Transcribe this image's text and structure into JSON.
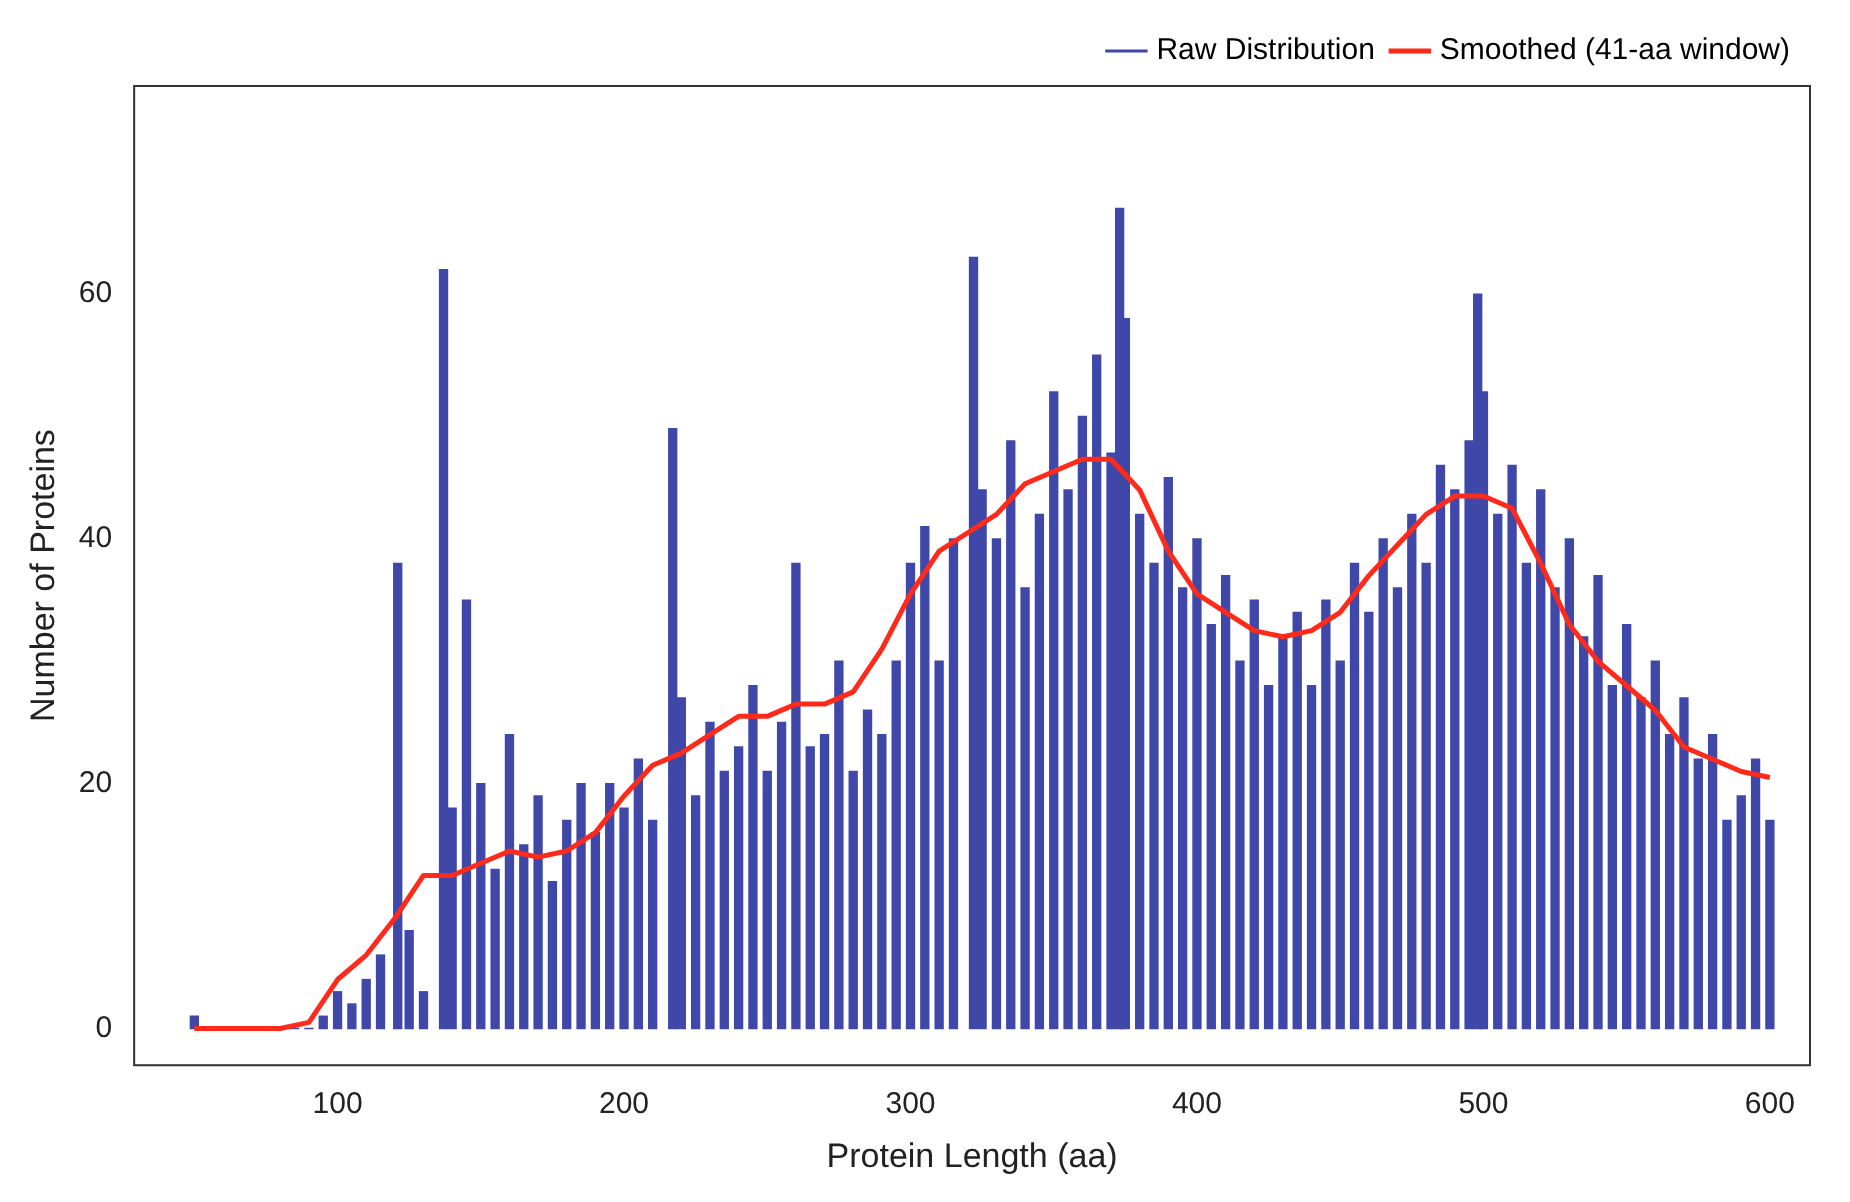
{
  "chart_data": {
    "type": "bar",
    "xlabel": "Protein Length (aa)",
    "ylabel": "Number of Proteins",
    "xlim": [
      29,
      614
    ],
    "xticks": [
      100,
      200,
      300,
      400,
      500,
      600
    ],
    "ylim": [
      -3,
      77
    ],
    "yticks": [
      0,
      20,
      40,
      60
    ],
    "grid": false,
    "legend": "top right",
    "series": [
      {
        "name": "Raw Distribution",
        "color": "#3f48a8",
        "x": [
          50,
          55,
          60,
          65,
          70,
          75,
          80,
          85,
          90,
          95,
          100,
          105,
          110,
          115,
          121,
          125,
          130,
          137,
          140,
          145,
          150,
          155,
          160,
          165,
          170,
          175,
          180,
          185,
          190,
          195,
          200,
          205,
          210,
          217,
          220,
          225,
          230,
          235,
          240,
          245,
          250,
          255,
          260,
          265,
          270,
          275,
          280,
          285,
          290,
          295,
          300,
          305,
          310,
          315,
          322,
          325,
          330,
          335,
          340,
          345,
          350,
          355,
          360,
          365,
          370,
          373,
          375,
          380,
          385,
          390,
          395,
          400,
          405,
          410,
          415,
          420,
          425,
          430,
          435,
          440,
          445,
          450,
          455,
          460,
          465,
          470,
          475,
          480,
          485,
          490,
          495,
          498,
          500,
          505,
          510,
          515,
          520,
          525,
          530,
          535,
          540,
          545,
          550,
          555,
          560,
          565,
          570,
          575,
          580,
          585,
          590,
          595,
          600
        ],
        "values": [
          1,
          0,
          0,
          0,
          0,
          0,
          0,
          0,
          0,
          1,
          3,
          2,
          4,
          6,
          38,
          8,
          3,
          62,
          18,
          35,
          20,
          13,
          24,
          15,
          19,
          12,
          17,
          20,
          16,
          20,
          18,
          22,
          17,
          49,
          27,
          19,
          25,
          21,
          23,
          28,
          21,
          25,
          38,
          23,
          24,
          30,
          21,
          26,
          24,
          30,
          38,
          41,
          30,
          40,
          63,
          44,
          40,
          48,
          36,
          42,
          52,
          44,
          50,
          55,
          47,
          67,
          58,
          42,
          38,
          45,
          36,
          40,
          33,
          37,
          30,
          35,
          28,
          32,
          34,
          28,
          35,
          30,
          38,
          34,
          40,
          36,
          42,
          38,
          46,
          44,
          48,
          60,
          52,
          42,
          46,
          38,
          44,
          36,
          40,
          32,
          37,
          28,
          33,
          27,
          30,
          24,
          27,
          22,
          24,
          17,
          19,
          22,
          17
        ]
      },
      {
        "name": "Smoothed (41-aa window)",
        "type": "line",
        "color": "#ff2a1a",
        "line_style": "solid",
        "marker": "none",
        "x": [
          50,
          60,
          70,
          80,
          90,
          100,
          110,
          120,
          130,
          140,
          150,
          160,
          170,
          180,
          190,
          200,
          210,
          220,
          230,
          240,
          250,
          260,
          270,
          280,
          290,
          300,
          310,
          320,
          330,
          340,
          350,
          360,
          370,
          380,
          390,
          400,
          410,
          420,
          430,
          440,
          450,
          460,
          470,
          480,
          490,
          500,
          510,
          520,
          530,
          540,
          550,
          560,
          570,
          580,
          590,
          600
        ],
        "values": [
          0,
          0,
          0,
          0,
          0.5,
          4,
          6,
          9,
          12.5,
          12.5,
          13.5,
          14.5,
          14,
          14.5,
          16,
          19,
          21.5,
          22.5,
          24,
          25.5,
          25.5,
          26.5,
          26.5,
          27.5,
          31,
          35.5,
          39,
          40.5,
          42,
          44.5,
          45.5,
          46.5,
          46.5,
          44,
          39,
          35.5,
          34,
          32.5,
          32,
          32.5,
          34,
          37,
          39.5,
          42,
          43.5,
          43.5,
          42.5,
          38,
          33,
          30,
          28,
          26,
          23,
          22,
          21,
          20.5
        ]
      }
    ]
  }
}
